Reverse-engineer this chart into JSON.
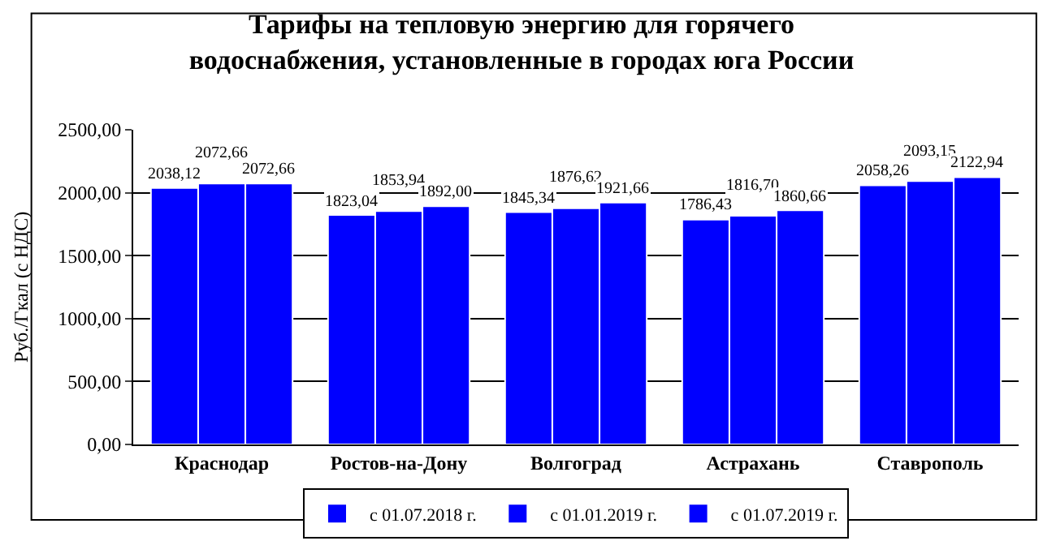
{
  "chart_data": {
    "type": "bar",
    "title": "Тарифы на тепловую энергию для горячего\nводоснабжения, установленные в городах юга России",
    "ylabel": "Руб./Гкал (с НДС)",
    "categories": [
      "Краснодар",
      "Ростов-на-Дону",
      "Волгоград",
      "Астрахань",
      "Ставрополь"
    ],
    "series": [
      {
        "name": "с 01.07.2018 г.",
        "color": "#0000ff",
        "values": [
          2038.12,
          1823.04,
          1845.34,
          1786.43,
          2058.26
        ],
        "value_labels": [
          "2038,12",
          "1823,04",
          "1845,34",
          "1786,43",
          "2058,26"
        ]
      },
      {
        "name": "с 01.01.2019 г.",
        "color": "#0000ff",
        "values": [
          2072.66,
          1853.94,
          1876.62,
          1816.7,
          2093.15
        ],
        "value_labels": [
          "2072,66",
          "1853,94",
          "1876,62",
          "1816,70",
          "2093,15"
        ]
      },
      {
        "name": "с 01.07.2019 г.",
        "color": "#0000ff",
        "values": [
          2072.66,
          1892.0,
          1921.66,
          1860.66,
          2122.94
        ],
        "value_labels": [
          "2072,66",
          "1892,00",
          "1921,66",
          "1860,66",
          "2122,94"
        ]
      }
    ],
    "ylim": [
      0,
      2500
    ],
    "yticks": [
      {
        "value": 0,
        "label": "0,00"
      },
      {
        "value": 500,
        "label": "500,00"
      },
      {
        "value": 1000,
        "label": "1000,00"
      },
      {
        "value": 1500,
        "label": "1500,00"
      },
      {
        "value": 2000,
        "label": "2000,00"
      },
      {
        "value": 2500,
        "label": "2500,00"
      }
    ],
    "grid": "y",
    "legend": "bottom"
  }
}
